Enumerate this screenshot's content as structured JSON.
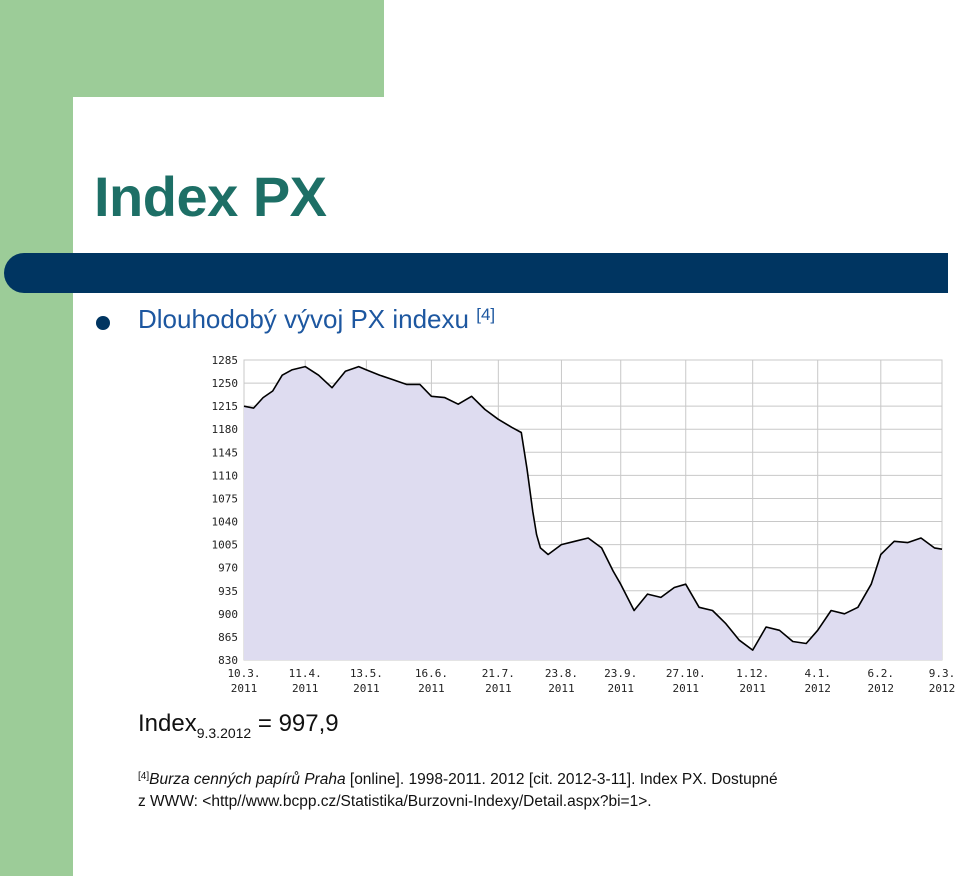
{
  "slide": {
    "title": "Index PX",
    "bullet_text": "Dlouhodobý vývoj PX indexu",
    "bullet_ref": "[4]"
  },
  "index_value": {
    "label": "Index",
    "date_sub": "9.3.2012",
    "value_text": "= 997,9"
  },
  "citation": {
    "ref": "[4]",
    "source_italic": "Burza cenných papírů Praha",
    "line1_rest": " [online]. 1998-2011. 2012 [cit. 2012-3-11]. Index PX. Dostupné",
    "line2": "z WWW: <http//www.bcpp.cz/Statistika/Burzovni-Indexy/Detail.aspx?bi=1>."
  },
  "colors": {
    "accent_green": "#9ccc98",
    "title_teal": "#1d6f66",
    "bar_navy": "#003561",
    "subtitle_blue": "#1d57a0",
    "fill": "#dedcf0",
    "line": "#000000"
  },
  "chart_data": {
    "type": "area",
    "title": "",
    "xlabel": "",
    "ylabel": "",
    "ylim": [
      830,
      1285
    ],
    "yticks": [
      "1285",
      "1250",
      "1215",
      "1180",
      "1145",
      "1110",
      "1075",
      "1040",
      "1005",
      "970",
      "935",
      "900",
      "865",
      "830"
    ],
    "xtick_dates": [
      "10.3.",
      "11.4.",
      "13.5.",
      "16.6.",
      "21.7.",
      "23.8.",
      "23.9.",
      "27.10.",
      "1.12.",
      "4.1.",
      "6.2.",
      "9.3."
    ],
    "xtick_years": [
      "2011",
      "2011",
      "2011",
      "2011",
      "2011",
      "2011",
      "2011",
      "2011",
      "2011",
      "2012",
      "2012",
      "2012"
    ],
    "grid": true,
    "series": [
      {
        "x": [
          "10.3.2011",
          "15.3.2011",
          "20.3.2011",
          "25.3.2011",
          "30.3.2011",
          "4.4.2011",
          "11.4.2011",
          "18.4.2011",
          "25.4.2011",
          "2.5.2011",
          "9.5.2011",
          "13.5.2011",
          "20.5.2011",
          "27.5.2011",
          "3.6.2011",
          "10.6.2011",
          "16.6.2011",
          "23.6.2011",
          "30.6.2011",
          "7.7.2011",
          "14.7.2011",
          "21.7.2011",
          "28.7.2011",
          "2.8.2011",
          "5.8.2011",
          "8.8.2011",
          "10.8.2011",
          "12.8.2011",
          "16.8.2011",
          "23.8.2011",
          "30.8.2011",
          "6.9.2011",
          "13.9.2011",
          "19.9.2011",
          "23.9.2011",
          "30.9.2011",
          "7.10.2011",
          "14.10.2011",
          "21.10.2011",
          "27.10.2011",
          "3.11.2011",
          "10.11.2011",
          "17.11.2011",
          "24.11.2011",
          "1.12.2011",
          "8.12.2011",
          "15.12.2011",
          "22.12.2011",
          "29.12.2011",
          "4.1.2012",
          "11.1.2012",
          "18.1.2012",
          "25.1.2012",
          "1.2.2012",
          "6.2.2012",
          "13.2.2012",
          "20.2.2012",
          "27.2.2012",
          "5.3.2012",
          "9.3.2012"
        ],
        "values": [
          1215,
          1212,
          1228,
          1238,
          1262,
          1270,
          1275,
          1262,
          1243,
          1268,
          1275,
          1270,
          1262,
          1255,
          1248,
          1248,
          1230,
          1228,
          1218,
          1230,
          1210,
          1195,
          1183,
          1175,
          1120,
          1055,
          1020,
          1000,
          990,
          1005,
          1010,
          1015,
          1000,
          965,
          945,
          905,
          930,
          925,
          940,
          945,
          910,
          905,
          885,
          860,
          845,
          880,
          875,
          858,
          855,
          875,
          905,
          900,
          910,
          945,
          990,
          1010,
          1008,
          1015,
          1000,
          998
        ]
      }
    ]
  }
}
